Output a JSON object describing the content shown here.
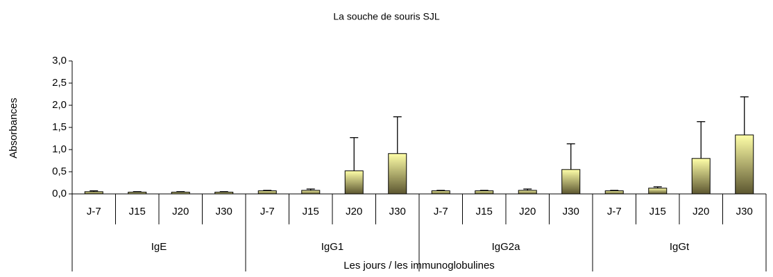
{
  "chart_data": {
    "type": "bar",
    "title": "La souche de souris SJL",
    "y_label": "Absorbances",
    "x_label": "Les jours / les immunoglobulines",
    "categories": [
      "J-7",
      "J15",
      "J20",
      "J30",
      "J-7",
      "J15",
      "J20",
      "J30",
      "J-7",
      "J15",
      "J20",
      "J30",
      "J-7",
      "J15",
      "J20",
      "J30"
    ],
    "groups": [
      "IgE",
      "IgG1",
      "IgG2a",
      "IgGt"
    ],
    "values": [
      0.05,
      0.04,
      0.04,
      0.04,
      0.07,
      0.08,
      0.52,
      0.91,
      0.07,
      0.07,
      0.08,
      0.55,
      0.07,
      0.13,
      0.8,
      1.33
    ],
    "errors": [
      0.02,
      0.01,
      0.01,
      0.01,
      0.01,
      0.03,
      0.75,
      0.83,
      0.01,
      0.01,
      0.03,
      0.58,
      0.01,
      0.03,
      0.83,
      0.86
    ],
    "color_top": "#ffffa8",
    "color_bottom": "#5c5630",
    "ylim": [
      0,
      3
    ],
    "yticks": [
      {
        "value": 0,
        "label": "0,0"
      },
      {
        "value": 0.5,
        "label": "0,5"
      },
      {
        "value": 1,
        "label": "1,0"
      },
      {
        "value": 1.5,
        "label": "1,5"
      },
      {
        "value": 2,
        "label": "2,0"
      },
      {
        "value": 2.5,
        "label": "2,5"
      },
      {
        "value": 3,
        "label": "3,0"
      }
    ]
  }
}
